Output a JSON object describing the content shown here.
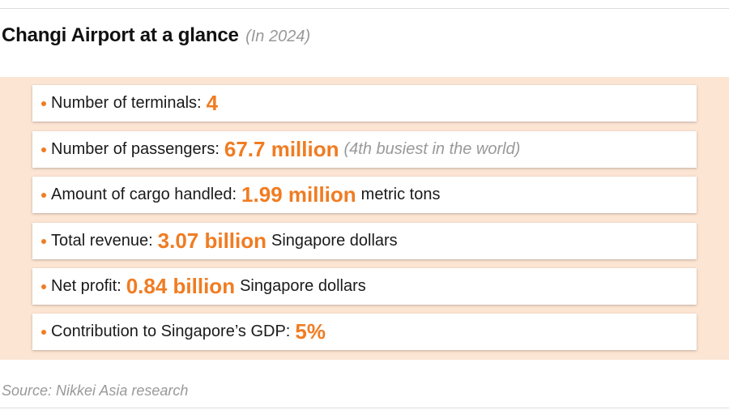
{
  "title": "Changi Airport at a glance",
  "subtitle": "(In 2024)",
  "colors": {
    "accent": "#f07c22",
    "panel_background": "#fde5d3",
    "muted_text": "#999999"
  },
  "chart_data": {
    "type": "table",
    "title": "Changi Airport at a glance",
    "subtitle": "(In 2024)",
    "rows": [
      {
        "label": "Number of terminals:",
        "value": "4",
        "suffix": "",
        "note": ""
      },
      {
        "label": "Number of passengers:",
        "value": "67.7 million",
        "suffix": "",
        "note": "(4th busiest in the world)"
      },
      {
        "label": "Amount of cargo handled:",
        "value": "1.99 million",
        "suffix": "metric tons",
        "note": ""
      },
      {
        "label": "Total revenue:",
        "value": "3.07 billion",
        "suffix": "Singapore dollars",
        "note": ""
      },
      {
        "label": "Net profit:",
        "value": "0.84 billion",
        "suffix": "Singapore dollars",
        "note": ""
      },
      {
        "label": "Contribution to Singapore’s GDP:",
        "value": "5%",
        "suffix": "",
        "note": ""
      }
    ]
  },
  "source": "Source: Nikkei Asia research"
}
